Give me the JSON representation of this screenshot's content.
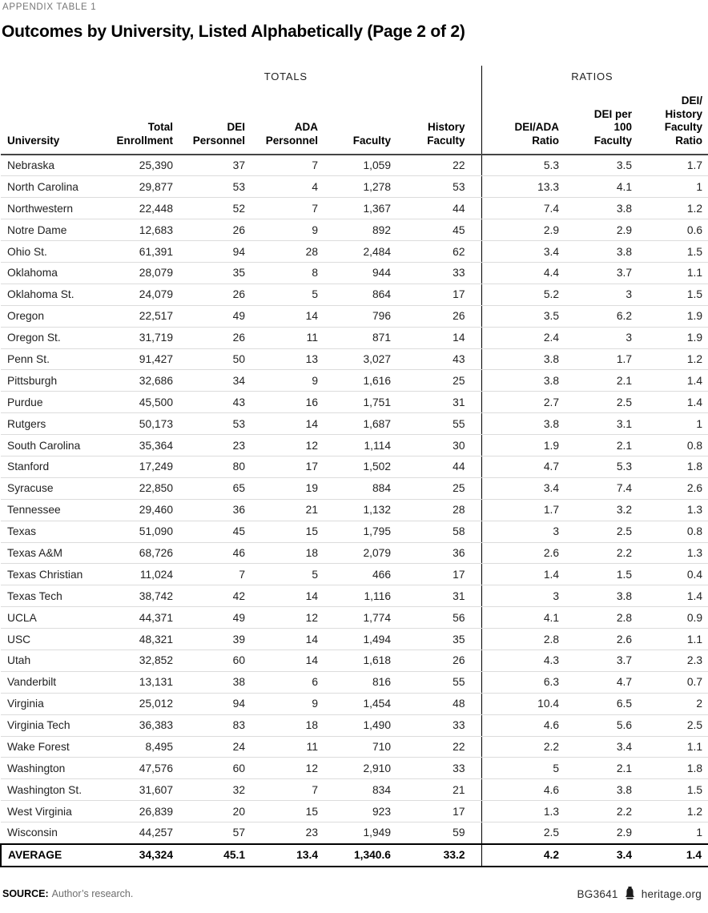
{
  "page": {
    "eyebrow": "APPENDIX TABLE 1",
    "title": "Outcomes by University, Listed Alphabetically (Page 2 of 2)"
  },
  "chart_data": {
    "type": "table",
    "title": "Outcomes by University, Listed Alphabetically (Page 2 of 2)",
    "group_headers": [
      {
        "label": "TOTALS",
        "spans": [
          "Total Enrollment",
          "DEI Personnel",
          "ADA Personnel",
          "Faculty",
          "History Faculty"
        ]
      },
      {
        "label": "RATIOS",
        "spans": [
          "DEI/ADA Ratio",
          "DEI per 100 Faculty",
          "DEI/History Faculty Ratio"
        ]
      }
    ],
    "columns": [
      {
        "key": "university",
        "header": "University"
      },
      {
        "key": "total-enrollment",
        "header": "Total\nEnrollment"
      },
      {
        "key": "dei-personnel",
        "header": "DEI\nPersonnel"
      },
      {
        "key": "ada-personnel",
        "header": "ADA\nPersonnel"
      },
      {
        "key": "faculty",
        "header": "Faculty"
      },
      {
        "key": "history-faculty",
        "header": "History\nFaculty"
      },
      {
        "key": "dei-ada-ratio",
        "header": "DEI/ADA\nRatio"
      },
      {
        "key": "dei-per-100-faculty",
        "header": "DEI per\n100\nFaculty"
      },
      {
        "key": "dei-history-faculty-ratio",
        "header": "DEI/\nHistory\nFaculty\nRatio"
      }
    ],
    "rows": [
      [
        "Nebraska",
        "25,390",
        "37",
        "7",
        "1,059",
        "22",
        "5.3",
        "3.5",
        "1.7"
      ],
      [
        "North Carolina",
        "29,877",
        "53",
        "4",
        "1,278",
        "53",
        "13.3",
        "4.1",
        "1"
      ],
      [
        "Northwestern",
        "22,448",
        "52",
        "7",
        "1,367",
        "44",
        "7.4",
        "3.8",
        "1.2"
      ],
      [
        "Notre Dame",
        "12,683",
        "26",
        "9",
        "892",
        "45",
        "2.9",
        "2.9",
        "0.6"
      ],
      [
        "Ohio St.",
        "61,391",
        "94",
        "28",
        "2,484",
        "62",
        "3.4",
        "3.8",
        "1.5"
      ],
      [
        "Oklahoma",
        "28,079",
        "35",
        "8",
        "944",
        "33",
        "4.4",
        "3.7",
        "1.1"
      ],
      [
        "Oklahoma St.",
        "24,079",
        "26",
        "5",
        "864",
        "17",
        "5.2",
        "3",
        "1.5"
      ],
      [
        "Oregon",
        "22,517",
        "49",
        "14",
        "796",
        "26",
        "3.5",
        "6.2",
        "1.9"
      ],
      [
        "Oregon St.",
        "31,719",
        "26",
        "11",
        "871",
        "14",
        "2.4",
        "3",
        "1.9"
      ],
      [
        "Penn St.",
        "91,427",
        "50",
        "13",
        "3,027",
        "43",
        "3.8",
        "1.7",
        "1.2"
      ],
      [
        "Pittsburgh",
        "32,686",
        "34",
        "9",
        "1,616",
        "25",
        "3.8",
        "2.1",
        "1.4"
      ],
      [
        "Purdue",
        "45,500",
        "43",
        "16",
        "1,751",
        "31",
        "2.7",
        "2.5",
        "1.4"
      ],
      [
        "Rutgers",
        "50,173",
        "53",
        "14",
        "1,687",
        "55",
        "3.8",
        "3.1",
        "1"
      ],
      [
        "South Carolina",
        "35,364",
        "23",
        "12",
        "1,114",
        "30",
        "1.9",
        "2.1",
        "0.8"
      ],
      [
        "Stanford",
        "17,249",
        "80",
        "17",
        "1,502",
        "44",
        "4.7",
        "5.3",
        "1.8"
      ],
      [
        "Syracuse",
        "22,850",
        "65",
        "19",
        "884",
        "25",
        "3.4",
        "7.4",
        "2.6"
      ],
      [
        "Tennessee",
        "29,460",
        "36",
        "21",
        "1,132",
        "28",
        "1.7",
        "3.2",
        "1.3"
      ],
      [
        "Texas",
        "51,090",
        "45",
        "15",
        "1,795",
        "58",
        "3",
        "2.5",
        "0.8"
      ],
      [
        "Texas A&M",
        "68,726",
        "46",
        "18",
        "2,079",
        "36",
        "2.6",
        "2.2",
        "1.3"
      ],
      [
        "Texas Christian",
        "11,024",
        "7",
        "5",
        "466",
        "17",
        "1.4",
        "1.5",
        "0.4"
      ],
      [
        "Texas Tech",
        "38,742",
        "42",
        "14",
        "1,116",
        "31",
        "3",
        "3.8",
        "1.4"
      ],
      [
        "UCLA",
        "44,371",
        "49",
        "12",
        "1,774",
        "56",
        "4.1",
        "2.8",
        "0.9"
      ],
      [
        "USC",
        "48,321",
        "39",
        "14",
        "1,494",
        "35",
        "2.8",
        "2.6",
        "1.1"
      ],
      [
        "Utah",
        "32,852",
        "60",
        "14",
        "1,618",
        "26",
        "4.3",
        "3.7",
        "2.3"
      ],
      [
        "Vanderbilt",
        "13,131",
        "38",
        "6",
        "816",
        "55",
        "6.3",
        "4.7",
        "0.7"
      ],
      [
        "Virginia",
        "25,012",
        "94",
        "9",
        "1,454",
        "48",
        "10.4",
        "6.5",
        "2"
      ],
      [
        "Virginia Tech",
        "36,383",
        "83",
        "18",
        "1,490",
        "33",
        "4.6",
        "5.6",
        "2.5"
      ],
      [
        "Wake Forest",
        "8,495",
        "24",
        "11",
        "710",
        "22",
        "2.2",
        "3.4",
        "1.1"
      ],
      [
        "Washington",
        "47,576",
        "60",
        "12",
        "2,910",
        "33",
        "5",
        "2.1",
        "1.8"
      ],
      [
        "Washington St.",
        "31,607",
        "32",
        "7",
        "834",
        "21",
        "4.6",
        "3.8",
        "1.5"
      ],
      [
        "West Virginia",
        "26,839",
        "20",
        "15",
        "923",
        "17",
        "1.3",
        "2.2",
        "1.2"
      ],
      [
        "Wisconsin",
        "44,257",
        "57",
        "23",
        "1,949",
        "59",
        "2.5",
        "2.9",
        "1"
      ]
    ],
    "average_row": [
      "AVERAGE",
      "34,324",
      "45.1",
      "13.4",
      "1,340.6",
      "33.2",
      "4.2",
      "3.4",
      "1.4"
    ]
  },
  "footer": {
    "source_label": "SOURCE:",
    "source_text": "Author’s research.",
    "doc_id": "BG3641",
    "brand_icon": "liberty-bell-icon",
    "brand_text": "heritage.org"
  },
  "colors": {
    "divider_black": "#000000",
    "row_line": "#dcdcdc",
    "header_underline": "#454545",
    "eyebrow_gray": "#767676",
    "source_gray": "#6e6e6e",
    "text": "#222222"
  }
}
